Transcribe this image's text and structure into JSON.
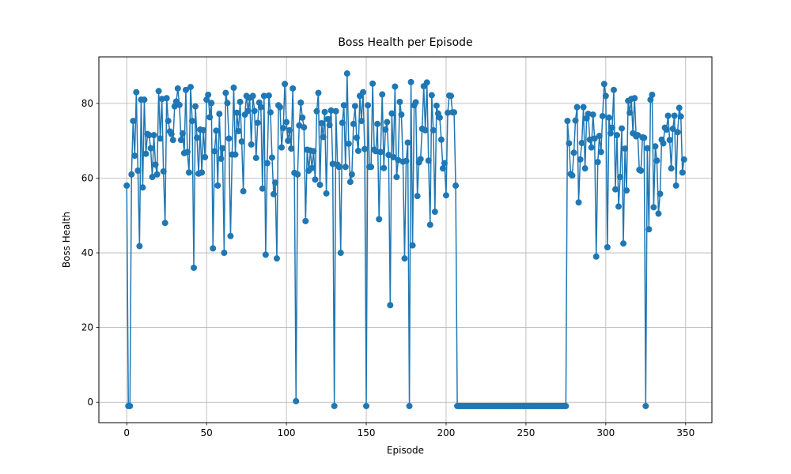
{
  "chart_data": {
    "type": "line",
    "title": "Boss Health per Episode",
    "x_label": "Episode",
    "y_label": "Boss Health",
    "color": "#1f77b4",
    "grid": true,
    "marker": "circle",
    "xlim": [
      -17.45,
      366.45
    ],
    "ylim": [
      -5.45,
      92.45
    ],
    "xticks": [
      0,
      50,
      100,
      150,
      200,
      250,
      300,
      350
    ],
    "yticks": [
      0,
      20,
      40,
      60,
      80
    ],
    "x": [
      0,
      1,
      2,
      3,
      4,
      5,
      6,
      7,
      8,
      9,
      10,
      11,
      12,
      13,
      14,
      15,
      16,
      17,
      18,
      19,
      20,
      21,
      22,
      23,
      24,
      25,
      26,
      27,
      28,
      29,
      30,
      31,
      32,
      33,
      34,
      35,
      36,
      37,
      38,
      39,
      40,
      41,
      42,
      43,
      44,
      45,
      46,
      47,
      48,
      49,
      50,
      51,
      52,
      53,
      54,
      55,
      56,
      57,
      58,
      59,
      60,
      61,
      62,
      63,
      64,
      65,
      66,
      67,
      68,
      69,
      70,
      71,
      72,
      73,
      74,
      75,
      76,
      77,
      78,
      79,
      80,
      81,
      82,
      83,
      84,
      85,
      86,
      87,
      88,
      89,
      90,
      91,
      92,
      93,
      94,
      95,
      96,
      97,
      98,
      99,
      100,
      101,
      102,
      103,
      104,
      105,
      106,
      107,
      108,
      109,
      110,
      111,
      112,
      113,
      114,
      115,
      116,
      117,
      118,
      119,
      120,
      121,
      122,
      123,
      124,
      125,
      126,
      127,
      128,
      129,
      130,
      131,
      132,
      133,
      134,
      135,
      136,
      137,
      138,
      139,
      140,
      141,
      142,
      143,
      144,
      145,
      146,
      147,
      148,
      149,
      150,
      151,
      152,
      153,
      154,
      155,
      156,
      157,
      158,
      159,
      160,
      161,
      162,
      163,
      164,
      165,
      166,
      167,
      168,
      169,
      170,
      171,
      172,
      173,
      174,
      175,
      176,
      177,
      178,
      179,
      180,
      181,
      182,
      183,
      184,
      185,
      186,
      187,
      188,
      189,
      190,
      191,
      192,
      193,
      194,
      195,
      196,
      197,
      198,
      199,
      200,
      201,
      202,
      203,
      204,
      205,
      206,
      207,
      208,
      209,
      210,
      211,
      212,
      213,
      214,
      215,
      216,
      217,
      218,
      219,
      220,
      221,
      222,
      223,
      224,
      225,
      226,
      227,
      228,
      229,
      230,
      231,
      232,
      233,
      234,
      235,
      236,
      237,
      238,
      239,
      240,
      241,
      242,
      243,
      244,
      245,
      246,
      247,
      248,
      249,
      250,
      251,
      252,
      253,
      254,
      255,
      256,
      257,
      258,
      259,
      260,
      261,
      262,
      263,
      264,
      265,
      266,
      267,
      268,
      269,
      270,
      271,
      272,
      273,
      274,
      275,
      276,
      277,
      278,
      279,
      280,
      281,
      282,
      283,
      284,
      285,
      286,
      287,
      288,
      289,
      290,
      291,
      292,
      293,
      294,
      295,
      296,
      297,
      298,
      299,
      300,
      301,
      302,
      303,
      304,
      305,
      306,
      307,
      308,
      309,
      310,
      311,
      312,
      313,
      314,
      315,
      316,
      317,
      318,
      319,
      320,
      321,
      322,
      323,
      324,
      325,
      326,
      327,
      328,
      329,
      330,
      331,
      332,
      333,
      334,
      335,
      336,
      337,
      338,
      339,
      340,
      341,
      342,
      343,
      344,
      345,
      346,
      347,
      348,
      349
    ],
    "values": [
      58,
      -1,
      -1,
      61,
      75.3,
      66,
      83,
      62,
      41.8,
      81,
      57.5,
      81,
      66.5,
      71.8,
      71.5,
      68,
      60.3,
      71.5,
      63.6,
      61,
      83.3,
      70.6,
      81.2,
      61.8,
      48,
      81.4,
      75.3,
      72.5,
      71.8,
      70.2,
      79.2,
      80.5,
      84,
      79.6,
      70.2,
      72,
      66.7,
      83.6,
      67,
      61.5,
      84.4,
      75.3,
      36,
      79.2,
      70.8,
      61.2,
      73,
      61.5,
      72.8,
      65.6,
      81,
      82.3,
      76.3,
      80.1,
      41.2,
      67.2,
      72.7,
      58,
      77.2,
      65.2,
      68,
      40,
      82.8,
      80.1,
      70.6,
      44.5,
      66.3,
      84.2,
      66.3,
      77.5,
      72.6,
      80.4,
      69.8,
      56.5,
      77,
      82,
      78,
      81.5,
      69,
      82,
      78,
      65.4,
      74.8,
      80.2,
      79,
      57.2,
      82,
      39.5,
      64,
      82.1,
      77.6,
      65.5,
      55.7,
      58.8,
      38.5,
      79.5,
      79,
      68.2,
      73.4,
      85.2,
      75,
      70,
      72.8,
      67.9,
      84,
      61.4,
      0.3,
      61,
      74.1,
      80.2,
      76.2,
      73.6,
      48.5,
      67.6,
      62,
      67.4,
      62.7,
      67.2,
      59.6,
      77.9,
      82.8,
      58.2,
      74.7,
      71,
      77.7,
      55.9,
      75.8,
      74.2,
      78.1,
      63.8,
      -1,
      77.9,
      63.6,
      63,
      40,
      74.8,
      79.5,
      63,
      88,
      69.2,
      59,
      61,
      74.5,
      79.3,
      70.8,
      67.3,
      82,
      75.3,
      83,
      67.8,
      -1,
      79.5,
      63,
      63,
      85.3,
      67.6,
      67.2,
      74.5,
      49,
      67,
      82.4,
      62.7,
      73,
      75,
      66.2,
      26,
      77.3,
      65.6,
      84.5,
      60.3,
      64.8,
      80.4,
      77,
      64.4,
      38.5,
      64.6,
      69.5,
      -1,
      85.7,
      42,
      79.5,
      80.3,
      55.2,
      64.2,
      65.1,
      73.2,
      84.6,
      72.8,
      85.6,
      64.7,
      47.5,
      82.2,
      72.8,
      51,
      79.4,
      77.3,
      76.2,
      70.3,
      62.6,
      64,
      55.4,
      77.5,
      82.1,
      82,
      77.6,
      77.6,
      58,
      -1,
      -1,
      -1,
      -1,
      -1,
      -1,
      -1,
      -1,
      -1,
      -1,
      -1,
      -1,
      -1,
      -1,
      -1,
      -1,
      -1,
      -1,
      -1,
      -1,
      -1,
      -1,
      -1,
      -1,
      -1,
      -1,
      -1,
      -1,
      -1,
      -1,
      -1,
      -1,
      -1,
      -1,
      -1,
      -1,
      -1,
      -1,
      -1,
      -1,
      -1,
      -1,
      -1,
      -1,
      -1,
      -1,
      -1,
      -1,
      -1,
      -1,
      -1,
      -1,
      -1,
      -1,
      -1,
      -1,
      -1,
      -1,
      -1,
      -1,
      -1,
      -1,
      -1,
      -1,
      -1,
      -1,
      -1,
      -1,
      -1,
      75.3,
      69.3,
      61.1,
      60.7,
      66.8,
      75.4,
      79,
      53.5,
      65,
      69.4,
      79,
      62.6,
      76,
      77.2,
      70.3,
      68.2,
      77,
      70.6,
      39,
      64.3,
      71.3,
      67,
      76.6,
      85.2,
      82,
      41.5,
      76.2,
      72,
      73.5,
      83.6,
      57,
      71.5,
      52.4,
      60.3,
      73.3,
      42.5,
      67.9,
      56.7,
      80.7,
      77.5,
      81.2,
      72,
      81.4,
      71.2,
      71.5,
      62.2,
      62,
      70.9,
      70.8,
      -1,
      68,
      46.3,
      81,
      82.3,
      52.2,
      68.5,
      64.7,
      50.5,
      55.8,
      70.3,
      69.3,
      73.5,
      73,
      76.7,
      70.2,
      62.6,
      73.2,
      76.7,
      58,
      72.3,
      78.8,
      76.5,
      61.5,
      65
    ]
  }
}
